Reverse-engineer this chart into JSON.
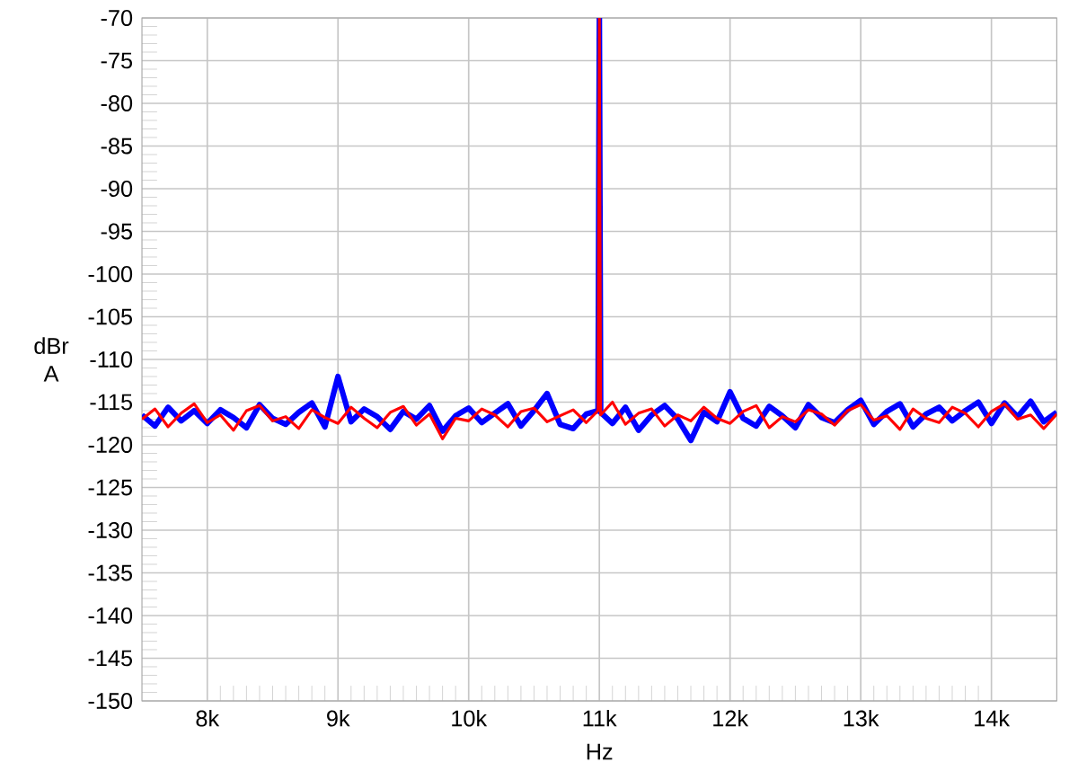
{
  "chart_data": {
    "type": "line",
    "xlabel": "Hz",
    "ylabel": "dBr A",
    "xlim": [
      7500,
      14500
    ],
    "ylim": [
      -150,
      -70
    ],
    "xticks": [
      {
        "value": 8000,
        "label": "8k"
      },
      {
        "value": 9000,
        "label": "9k"
      },
      {
        "value": 10000,
        "label": "10k"
      },
      {
        "value": 11000,
        "label": "11k"
      },
      {
        "value": 12000,
        "label": "12k"
      },
      {
        "value": 13000,
        "label": "13k"
      },
      {
        "value": 14000,
        "label": "14k"
      }
    ],
    "yticks": [
      -150,
      -145,
      -140,
      -135,
      -130,
      -125,
      -120,
      -115,
      -110,
      -105,
      -100,
      -95,
      -90,
      -85,
      -80,
      -75,
      -70
    ],
    "grid": true,
    "marker": "none",
    "line_style": "solid",
    "x": [
      7500,
      7600,
      7700,
      7800,
      7900,
      8000,
      8100,
      8200,
      8300,
      8400,
      8500,
      8600,
      8700,
      8800,
      8900,
      9000,
      9100,
      9200,
      9300,
      9400,
      9500,
      9600,
      9700,
      9800,
      9900,
      10000,
      10100,
      10200,
      10300,
      10400,
      10500,
      10600,
      10700,
      10800,
      10900,
      10990,
      11000,
      11010,
      11100,
      11200,
      11300,
      11400,
      11500,
      11600,
      11700,
      11800,
      11900,
      12000,
      12100,
      12200,
      12300,
      12400,
      12500,
      12600,
      12700,
      12800,
      12900,
      13000,
      13100,
      13200,
      13300,
      13400,
      13500,
      13600,
      13700,
      13800,
      13900,
      14000,
      14100,
      14200,
      14300,
      14400,
      14500
    ],
    "series": [
      {
        "color": "#0000ff",
        "values": [
          -116.5,
          -117.8,
          -115.6,
          -117.2,
          -116.0,
          -117.5,
          -115.9,
          -116.8,
          -118.0,
          -115.3,
          -116.9,
          -117.6,
          -116.2,
          -115.1,
          -117.9,
          -112.0,
          -117.3,
          -115.8,
          -116.7,
          -118.2,
          -116.1,
          -117.0,
          -115.4,
          -118.4,
          -116.6,
          -115.7,
          -117.4,
          -116.3,
          -115.2,
          -117.8,
          -116.0,
          -114.0,
          -117.6,
          -118.1,
          -116.4,
          -116.0,
          -70,
          -116.2,
          -117.5,
          -115.6,
          -118.3,
          -116.5,
          -115.4,
          -117.0,
          -119.5,
          -116.2,
          -117.3,
          -113.8,
          -116.9,
          -117.8,
          -115.5,
          -116.6,
          -118.0,
          -115.3,
          -116.8,
          -117.4,
          -115.9,
          -114.8,
          -117.6,
          -116.1,
          -115.2,
          -117.9,
          -116.4,
          -115.6,
          -117.2,
          -116.0,
          -115.0,
          -117.5,
          -115.1,
          -116.7,
          -114.9,
          -117.3,
          -116.2
        ]
      },
      {
        "color": "#ff0000",
        "values": [
          -117.0,
          -115.8,
          -117.9,
          -116.3,
          -115.2,
          -117.4,
          -116.5,
          -118.3,
          -116.0,
          -115.4,
          -117.2,
          -116.7,
          -118.1,
          -115.9,
          -116.8,
          -117.5,
          -115.6,
          -116.9,
          -118.0,
          -116.2,
          -115.5,
          -117.7,
          -116.4,
          -119.3,
          -116.9,
          -117.2,
          -115.8,
          -116.5,
          -117.9,
          -116.1,
          -115.7,
          -117.3,
          -116.6,
          -115.9,
          -117.4,
          -116.0,
          -70,
          -116.5,
          -115.0,
          -117.6,
          -116.3,
          -115.8,
          -117.8,
          -116.5,
          -117.2,
          -115.6,
          -116.9,
          -117.5,
          -116.1,
          -115.4,
          -118.0,
          -116.7,
          -117.3,
          -115.9,
          -116.4,
          -117.7,
          -116.0,
          -115.3,
          -117.1,
          -116.6,
          -118.2,
          -115.8,
          -116.9,
          -117.4,
          -115.6,
          -116.3,
          -117.9,
          -116.1,
          -115.2,
          -117.0,
          -116.5,
          -118.1,
          -116.4
        ]
      }
    ]
  }
}
